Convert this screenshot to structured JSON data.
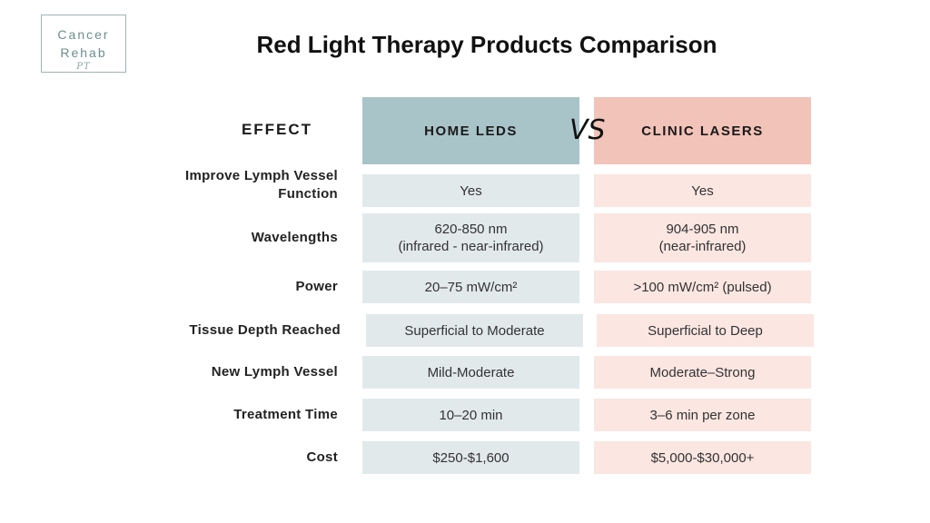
{
  "logo": {
    "line1": "Cancer",
    "line2": "Rehab",
    "signature": "PT"
  },
  "title": "Red Light Therapy Products Comparison",
  "headers": {
    "effect": "EFFECT",
    "home": "HOME LEDS",
    "vs": "VS",
    "clinic": "CLINIC LASERS"
  },
  "rows": [
    {
      "label": "Improve Lymph Vessel Function",
      "home": "Yes",
      "clinic": "Yes"
    },
    {
      "label": "Wavelengths",
      "home_line1": "620-850 nm",
      "home_line2": "(infrared - near-infrared)",
      "clinic_line1": "904-905 nm",
      "clinic_line2": "(near-infrared)"
    },
    {
      "label": "Power",
      "home": "20–75 mW/cm²",
      "clinic": ">100 mW/cm² (pulsed)"
    },
    {
      "label": "Tissue Depth Reached",
      "home": "Superficial to Moderate",
      "clinic": "Superficial to Deep"
    },
    {
      "label": "New Lymph Vessel",
      "home": "Mild-Moderate",
      "clinic": "Moderate–Strong"
    },
    {
      "label": "Treatment Time",
      "home": "10–20 min",
      "clinic": "3–6 min per zone"
    },
    {
      "label": "Cost",
      "home": "$250-$1,600",
      "clinic": "$5,000-$30,000+"
    }
  ]
}
